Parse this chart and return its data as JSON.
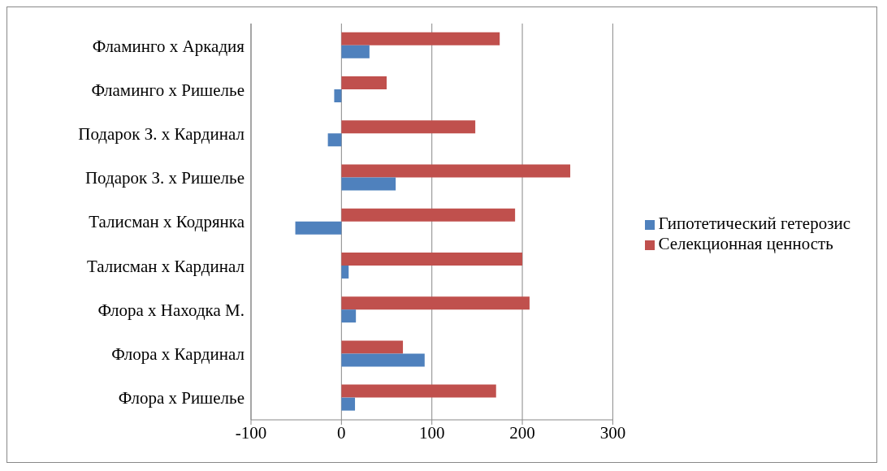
{
  "chart_data": {
    "type": "bar",
    "orientation": "horizontal",
    "categories": [
      "Фламинго х Аркадия",
      "Фламинго х Ришелье",
      "Подарок З. х Кардинал",
      "Подарок З. х Ришелье",
      "Талисман х Кодрянка",
      "Талисман х Кардинал",
      "Флора х Находка М.",
      "Флора х Кардинал",
      "Флора х Ришелье"
    ],
    "series": [
      {
        "name": "Селекционная ценность",
        "color": "#c0504d",
        "values": [
          175,
          50,
          148,
          253,
          192,
          200,
          208,
          68,
          171
        ]
      },
      {
        "name": "Гипотетический гетерозис",
        "color": "#4f81bd",
        "values": [
          31,
          -8,
          -15,
          60,
          -51,
          8,
          16,
          92,
          15
        ]
      }
    ],
    "xlim": [
      -100,
      300
    ],
    "xticks": [
      -100,
      0,
      100,
      200,
      300
    ],
    "grid": "x",
    "legend": "right"
  }
}
